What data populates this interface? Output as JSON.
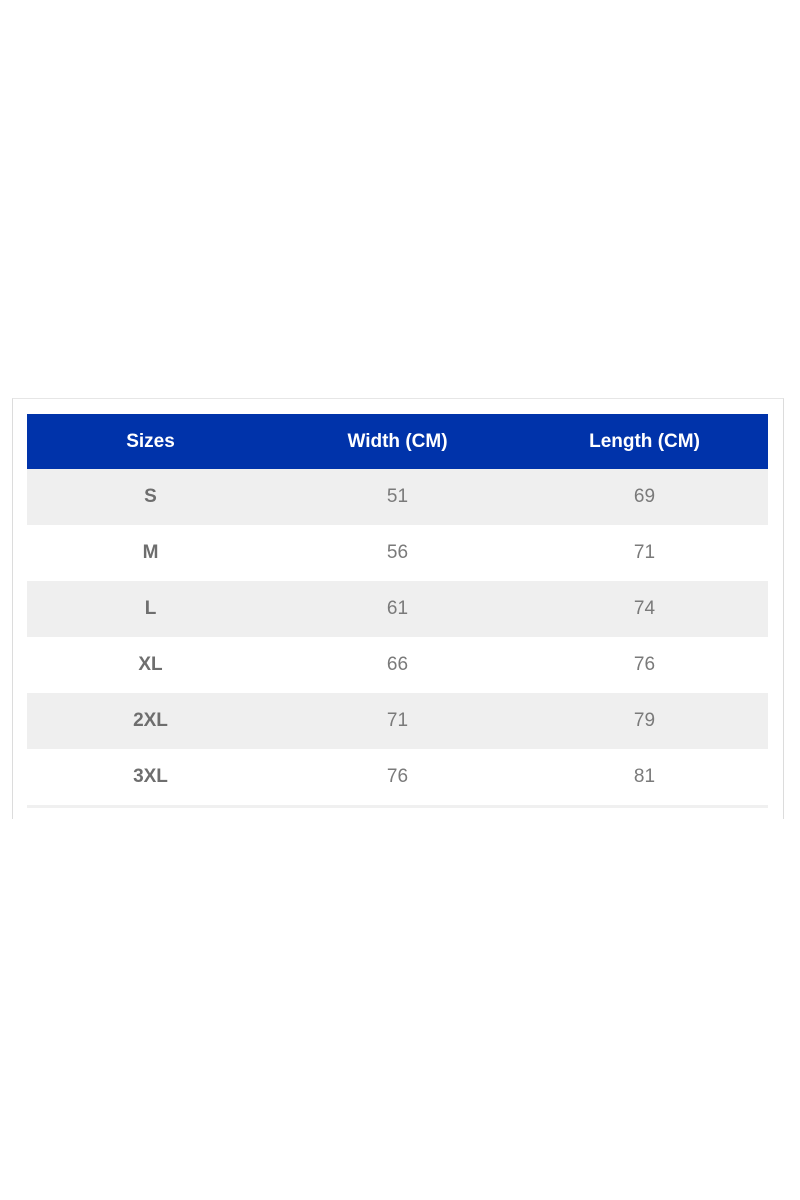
{
  "colors": {
    "header_bg": "#0033aa",
    "stripe_bg": "#efefef"
  },
  "table": {
    "headers": [
      "Sizes",
      "Width (CM)",
      "Length (CM)"
    ],
    "rows": [
      [
        "S",
        "51",
        "69"
      ],
      [
        "M",
        "56",
        "71"
      ],
      [
        "L",
        "61",
        "74"
      ],
      [
        "XL",
        "66",
        "76"
      ],
      [
        "2XL",
        "71",
        "79"
      ],
      [
        "3XL",
        "76",
        "81"
      ]
    ]
  }
}
